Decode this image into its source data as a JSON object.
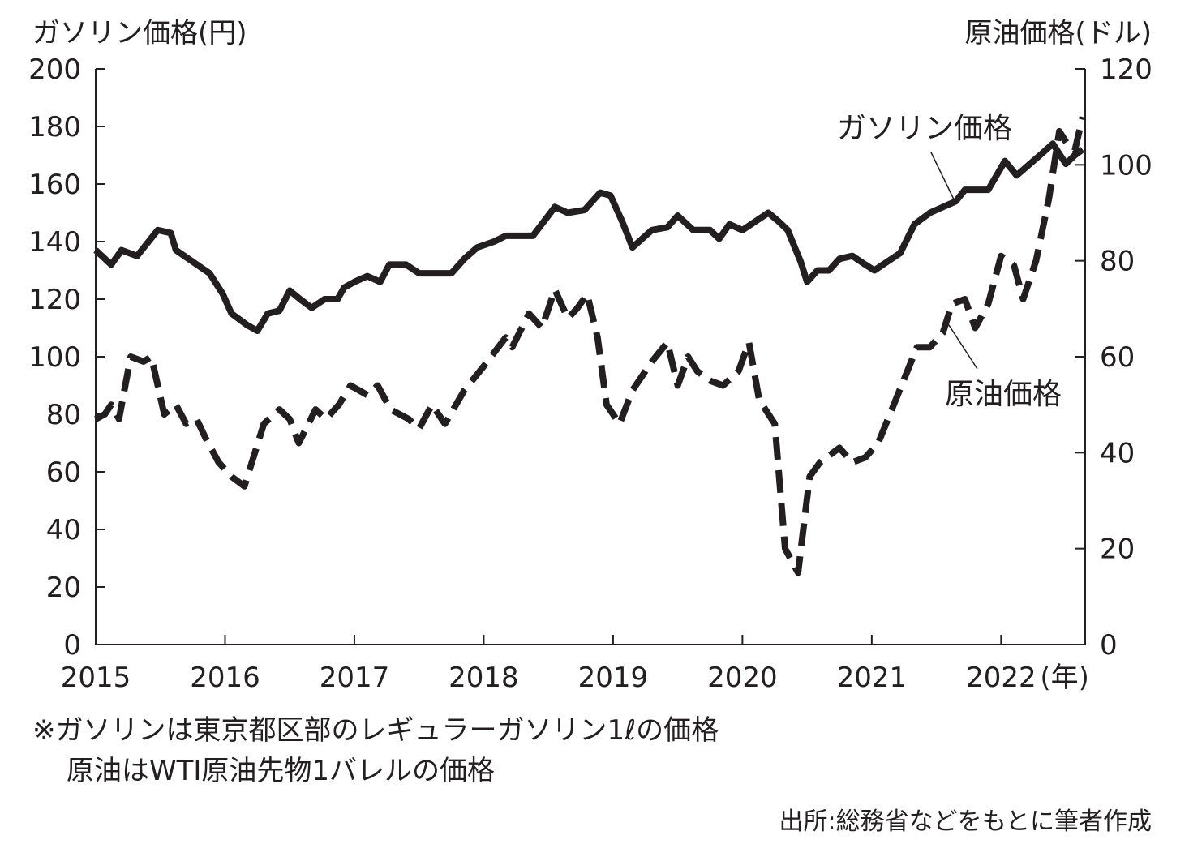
{
  "chart_data": {
    "type": "line",
    "x_start": 2015,
    "x_end": 2022.65,
    "y_left": {
      "label": "ガソリン価格(円)",
      "lim": [
        0,
        200
      ],
      "ticks": [
        "0",
        "20",
        "40",
        "60",
        "80",
        "100",
        "120",
        "140",
        "160",
        "180",
        "200"
      ]
    },
    "y_right": {
      "label": "原油価格(ドル)",
      "lim": [
        0,
        120
      ],
      "ticks": [
        "0",
        "20",
        "40",
        "60",
        "80",
        "100",
        "120"
      ]
    },
    "x_ticks": [
      "2015",
      "2016",
      "2017",
      "2018",
      "2019",
      "2020",
      "2021",
      "2022"
    ],
    "x_unit": "(年)",
    "series": [
      {
        "name": "ガソリン価格",
        "axis": "left",
        "style": "solid",
        "points": [
          [
            2015.0,
            137
          ],
          [
            2015.12,
            132
          ],
          [
            2015.2,
            137
          ],
          [
            2015.32,
            135
          ],
          [
            2015.48,
            144
          ],
          [
            2015.58,
            143
          ],
          [
            2015.62,
            137
          ],
          [
            2015.75,
            133
          ],
          [
            2015.88,
            129
          ],
          [
            2015.98,
            122
          ],
          [
            2016.05,
            115
          ],
          [
            2016.17,
            111
          ],
          [
            2016.25,
            109
          ],
          [
            2016.33,
            115
          ],
          [
            2016.42,
            116
          ],
          [
            2016.5,
            123
          ],
          [
            2016.58,
            120
          ],
          [
            2016.67,
            117
          ],
          [
            2016.77,
            120
          ],
          [
            2016.87,
            120
          ],
          [
            2016.92,
            124
          ],
          [
            2017.0,
            126
          ],
          [
            2017.1,
            128
          ],
          [
            2017.2,
            126
          ],
          [
            2017.27,
            132
          ],
          [
            2017.4,
            132
          ],
          [
            2017.5,
            129
          ],
          [
            2017.6,
            129
          ],
          [
            2017.75,
            129
          ],
          [
            2017.85,
            134
          ],
          [
            2017.95,
            138
          ],
          [
            2018.08,
            140
          ],
          [
            2018.17,
            142
          ],
          [
            2018.25,
            142
          ],
          [
            2018.38,
            142
          ],
          [
            2018.55,
            152
          ],
          [
            2018.65,
            150
          ],
          [
            2018.78,
            151
          ],
          [
            2018.9,
            157
          ],
          [
            2018.98,
            156
          ],
          [
            2019.07,
            147
          ],
          [
            2019.15,
            138
          ],
          [
            2019.3,
            144
          ],
          [
            2019.42,
            145
          ],
          [
            2019.5,
            149
          ],
          [
            2019.62,
            144
          ],
          [
            2019.75,
            144
          ],
          [
            2019.82,
            141
          ],
          [
            2019.9,
            146
          ],
          [
            2020.0,
            144
          ],
          [
            2020.2,
            150
          ],
          [
            2020.28,
            147
          ],
          [
            2020.35,
            144
          ],
          [
            2020.45,
            133
          ],
          [
            2020.5,
            126
          ],
          [
            2020.58,
            130
          ],
          [
            2020.67,
            130
          ],
          [
            2020.75,
            134
          ],
          [
            2020.85,
            135
          ],
          [
            2020.95,
            132
          ],
          [
            2021.02,
            130
          ],
          [
            2021.12,
            133
          ],
          [
            2021.22,
            136
          ],
          [
            2021.33,
            146
          ],
          [
            2021.45,
            150
          ],
          [
            2021.55,
            152
          ],
          [
            2021.65,
            154
          ],
          [
            2021.72,
            158
          ],
          [
            2021.8,
            158
          ],
          [
            2021.9,
            158
          ],
          [
            2022.03,
            168
          ],
          [
            2022.12,
            163
          ],
          [
            2022.3,
            170
          ],
          [
            2022.4,
            174
          ],
          [
            2022.5,
            167
          ],
          [
            2022.57,
            170
          ],
          [
            2022.63,
            172
          ]
        ]
      },
      {
        "name": "原油価格",
        "axis": "right",
        "style": "dashed",
        "points": [
          [
            2015.0,
            47
          ],
          [
            2015.07,
            48
          ],
          [
            2015.12,
            50
          ],
          [
            2015.18,
            47
          ],
          [
            2015.27,
            60
          ],
          [
            2015.37,
            59
          ],
          [
            2015.43,
            60
          ],
          [
            2015.53,
            48
          ],
          [
            2015.62,
            50
          ],
          [
            2015.7,
            46
          ],
          [
            2015.78,
            47
          ],
          [
            2015.85,
            43
          ],
          [
            2015.95,
            38
          ],
          [
            2016.05,
            35
          ],
          [
            2016.15,
            33
          ],
          [
            2016.3,
            46
          ],
          [
            2016.42,
            49
          ],
          [
            2016.5,
            47
          ],
          [
            2016.57,
            42
          ],
          [
            2016.7,
            49
          ],
          [
            2016.78,
            47
          ],
          [
            2016.88,
            50
          ],
          [
            2016.97,
            54
          ],
          [
            2017.1,
            52
          ],
          [
            2017.18,
            54
          ],
          [
            2017.28,
            49
          ],
          [
            2017.42,
            47
          ],
          [
            2017.5,
            45
          ],
          [
            2017.6,
            50
          ],
          [
            2017.7,
            46
          ],
          [
            2017.85,
            53
          ],
          [
            2018.0,
            58
          ],
          [
            2018.17,
            64
          ],
          [
            2018.22,
            62
          ],
          [
            2018.35,
            69
          ],
          [
            2018.45,
            66
          ],
          [
            2018.55,
            74
          ],
          [
            2018.65,
            68
          ],
          [
            2018.72,
            70
          ],
          [
            2018.8,
            73
          ],
          [
            2018.88,
            64
          ],
          [
            2018.95,
            50
          ],
          [
            2019.05,
            46
          ],
          [
            2019.15,
            53
          ],
          [
            2019.3,
            59
          ],
          [
            2019.42,
            63
          ],
          [
            2019.5,
            54
          ],
          [
            2019.58,
            60
          ],
          [
            2019.65,
            57
          ],
          [
            2019.75,
            55
          ],
          [
            2019.85,
            54
          ],
          [
            2019.97,
            57
          ],
          [
            2020.05,
            63
          ],
          [
            2020.13,
            51
          ],
          [
            2020.25,
            46
          ],
          [
            2020.33,
            20
          ],
          [
            2020.43,
            15
          ],
          [
            2020.52,
            35
          ],
          [
            2020.6,
            38
          ],
          [
            2020.75,
            41
          ],
          [
            2020.85,
            38
          ],
          [
            2020.95,
            39
          ],
          [
            2021.05,
            42
          ],
          [
            2021.2,
            52
          ],
          [
            2021.35,
            62
          ],
          [
            2021.45,
            62
          ],
          [
            2021.55,
            65
          ],
          [
            2021.62,
            71
          ],
          [
            2021.72,
            72
          ],
          [
            2021.8,
            66
          ],
          [
            2021.9,
            71
          ],
          [
            2022.0,
            81
          ],
          [
            2022.1,
            79
          ],
          [
            2022.17,
            72
          ],
          [
            2022.27,
            80
          ],
          [
            2022.37,
            93
          ],
          [
            2022.45,
            107
          ],
          [
            2022.52,
            104
          ],
          [
            2022.57,
            103
          ],
          [
            2022.63,
            110
          ]
        ]
      }
    ],
    "annotations": [
      {
        "text": "ガソリン価格",
        "series": "ガソリン価格"
      },
      {
        "text": "原油価格",
        "series": "原油価格"
      }
    ]
  },
  "notes": {
    "line1": "※ガソリンは東京都区部のレギュラーガソリン1ℓの価格",
    "line2": "原油はWTI原油先物1バレルの価格",
    "source": "出所:総務省などをもとに筆者作成"
  }
}
